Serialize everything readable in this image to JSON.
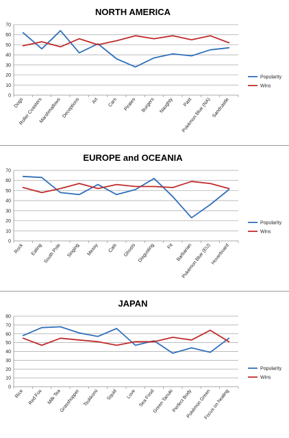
{
  "chart_data": [
    {
      "type": "line",
      "title": "NORTH AMERICA",
      "categories": [
        "Dogs",
        "Roller Coasters",
        "Marshmallows",
        "Deceptions",
        "Art",
        "Cars",
        "Pirates",
        "Burgers",
        "Naughty",
        "Past",
        "Pokémon Blue (NA)",
        "Sandcastle"
      ],
      "series": [
        {
          "name": "Popularity",
          "color": "#2f6fba",
          "values": [
            62,
            46,
            64,
            42,
            51,
            36,
            28,
            37,
            41,
            39,
            45,
            47
          ]
        },
        {
          "name": "Wins",
          "color": "#c02a2a",
          "values": [
            49,
            53,
            48,
            56,
            50,
            54,
            59,
            56,
            59,
            55,
            59,
            52
          ]
        }
      ],
      "ylim": [
        0,
        70
      ],
      "yticks": [
        0,
        10,
        20,
        30,
        40,
        50,
        60,
        70
      ],
      "grid": true,
      "legend": "right"
    },
    {
      "type": "line",
      "title": "EUROPE and OCEANIA",
      "categories": [
        "Rock",
        "Eating",
        "South Pole",
        "Singing",
        "Messy",
        "Cats",
        "Ghosts",
        "Disgusting",
        "Fit",
        "Barbarian",
        "Pokémon Blue (EU)",
        "Hoverboard"
      ],
      "series": [
        {
          "name": "Popularity",
          "color": "#2f6fba",
          "values": [
            64,
            63,
            48,
            46,
            56,
            46,
            51,
            62,
            44,
            23,
            36,
            51
          ]
        },
        {
          "name": "Wins",
          "color": "#c02a2a",
          "values": [
            53,
            48,
            52,
            57,
            52,
            56,
            54,
            54,
            53,
            59,
            57,
            52
          ]
        }
      ],
      "ylim": [
        0,
        70
      ],
      "yticks": [
        0,
        10,
        20,
        30,
        40,
        50,
        60,
        70
      ],
      "grid": true,
      "legend": "right"
    },
    {
      "type": "line",
      "title": "JAPAN",
      "categories": [
        "Rice",
        "Red Fox",
        "Milk Tea",
        "Grasshopper",
        "Tsukkomi",
        "Squid",
        "Love",
        "Sea Food",
        "Green Tanuki",
        "Perfect Body",
        "Pokémon Green",
        "Focus on healing"
      ],
      "series": [
        {
          "name": "Popularity",
          "color": "#2f6fba",
          "values": [
            58,
            67,
            68,
            61,
            57,
            66,
            47,
            52,
            38,
            44,
            39,
            55
          ]
        },
        {
          "name": "Wins",
          "color": "#c02a2a",
          "values": [
            55,
            47,
            55,
            53,
            51,
            47,
            51,
            51,
            56,
            53,
            64,
            51
          ]
        }
      ],
      "ylim": [
        0,
        80
      ],
      "yticks": [
        0,
        10,
        20,
        30,
        40,
        50,
        60,
        70,
        80
      ],
      "grid": true,
      "legend": "right"
    }
  ]
}
